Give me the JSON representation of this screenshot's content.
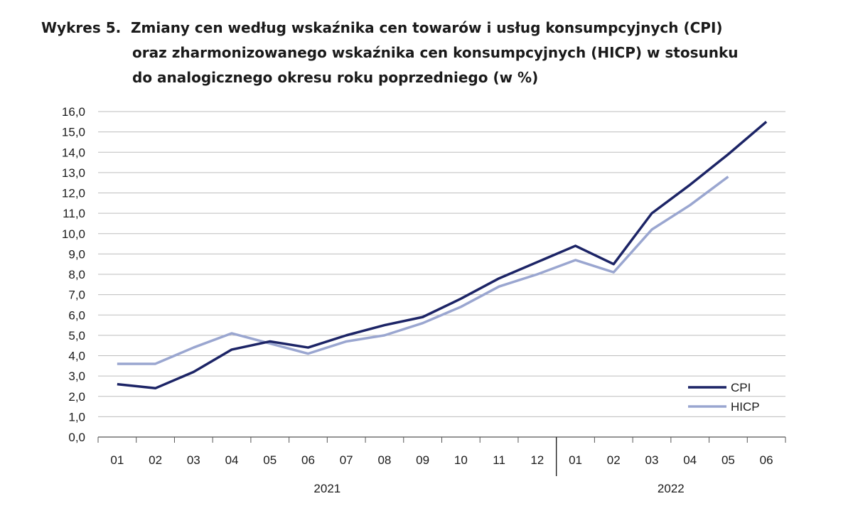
{
  "title": {
    "label": "Wykres 5.",
    "line1": "Zmiany cen według wskaźnika cen towarów i usług konsumpcyjnych (CPI)",
    "line2": "oraz zharmonizowanego wskaźnika cen konsumpcyjnych (HICP) w stosunku",
    "line3": "do analogicznego okresu roku poprzedniego (w %)"
  },
  "colors": {
    "cpi": "#1c2466",
    "hicp": "#9aa6d0",
    "grid": "#bdbdbd",
    "axis": "#555555"
  },
  "chart_data": {
    "type": "line",
    "title": "Wykres 5. Zmiany cen według wskaźnika cen towarów i usług konsumpcyjnych (CPI) oraz zharmonizowanego wskaźnika cen konsumpcyjnych (HICP) w stosunku do analogicznego okresu roku poprzedniego (w %)",
    "categories": [
      "01",
      "02",
      "03",
      "04",
      "05",
      "06",
      "07",
      "08",
      "09",
      "10",
      "11",
      "12",
      "01",
      "02",
      "03",
      "04",
      "05",
      "06"
    ],
    "years": [
      {
        "label": "2021",
        "from": 0,
        "to": 11
      },
      {
        "label": "2022",
        "from": 12,
        "to": 17
      }
    ],
    "ylim": [
      0,
      16
    ],
    "yticks": [
      "0,0",
      "1,0",
      "2,0",
      "3,0",
      "4,0",
      "5,0",
      "6,0",
      "7,0",
      "8,0",
      "9,0",
      "10,0",
      "11,0",
      "12,0",
      "13,0",
      "14,0",
      "15,0",
      "16,0"
    ],
    "grid": true,
    "legend_position": "bottom-right",
    "series": [
      {
        "name": "CPI",
        "values": [
          2.6,
          2.4,
          3.2,
          4.3,
          4.7,
          4.4,
          5.0,
          5.5,
          5.9,
          6.8,
          7.8,
          8.6,
          9.4,
          8.5,
          11.0,
          12.4,
          13.9,
          15.5
        ]
      },
      {
        "name": "HICP",
        "values": [
          3.6,
          3.6,
          4.4,
          5.1,
          4.6,
          4.1,
          4.7,
          5.0,
          5.6,
          6.4,
          7.4,
          8.0,
          8.7,
          8.1,
          10.2,
          11.4,
          12.8,
          null
        ]
      }
    ]
  }
}
